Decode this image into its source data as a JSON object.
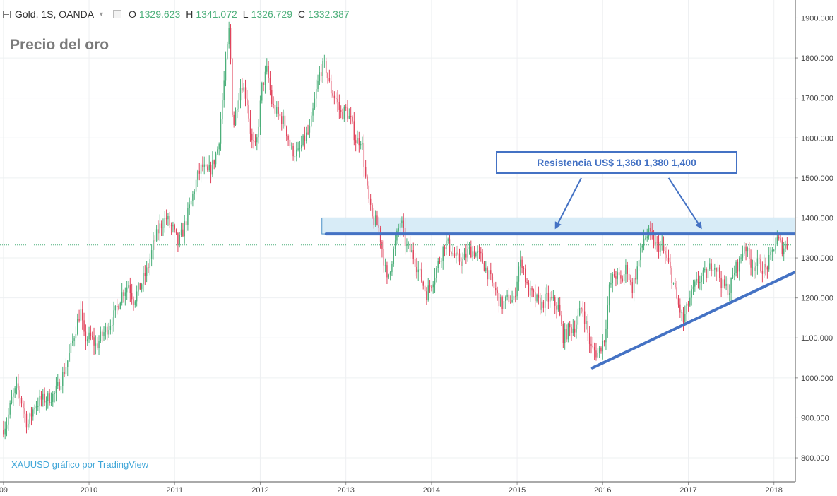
{
  "header": {
    "symbol": "Gold, 1S, OANDA",
    "ohlc": [
      {
        "key": "O",
        "value": "1329.623"
      },
      {
        "key": "H",
        "value": "1341.072"
      },
      {
        "key": "L",
        "value": "1326.729"
      },
      {
        "key": "C",
        "value": "1332.387"
      }
    ]
  },
  "watermark": "XAUUSD gráfico por TradingView",
  "callout": "Resistencia US$ 1,360  1,380 1,400",
  "colors": {
    "up": "#4caf7a",
    "down": "#e0445c",
    "annotation": "#4472c4",
    "zone_fill": "#d8ecf7",
    "zone_border": "#4a90c8",
    "watermark": "#3fa6d8",
    "title": "#7a7a7a"
  },
  "chart_data": {
    "type": "candlestick",
    "title": "Precio del oro",
    "xlabel": "",
    "ylabel": "",
    "x_tick_labels": [
      "2010",
      "2011",
      "2012",
      "2013",
      "2014",
      "2015",
      "2016",
      "2017",
      "2018"
    ],
    "x_first_partial_label": "09",
    "y_tick_labels": [
      "800.000",
      "900.000",
      "1000.000",
      "1100.000",
      "1200.000",
      "1300.000",
      "1400.000",
      "1500.000",
      "1600.000",
      "1700.000",
      "1800.000",
      "1900.000"
    ],
    "ylim": [
      740,
      1945
    ],
    "xlim": [
      2008.96,
      2018.25
    ],
    "grid": true,
    "current_price": 1332.387,
    "price_path": [
      [
        2009.0,
        870
      ],
      [
        2009.06,
        890
      ],
      [
        2009.12,
        950
      ],
      [
        2009.18,
        975
      ],
      [
        2009.24,
        935
      ],
      [
        2009.3,
        880
      ],
      [
        2009.38,
        930
      ],
      [
        2009.46,
        945
      ],
      [
        2009.55,
        950
      ],
      [
        2009.62,
        960
      ],
      [
        2009.7,
        1000
      ],
      [
        2009.78,
        1050
      ],
      [
        2009.86,
        1120
      ],
      [
        2009.92,
        1170
      ],
      [
        2009.96,
        1100
      ],
      [
        2010.04,
        1100
      ],
      [
        2010.1,
        1080
      ],
      [
        2010.18,
        1110
      ],
      [
        2010.25,
        1130
      ],
      [
        2010.32,
        1160
      ],
      [
        2010.4,
        1210
      ],
      [
        2010.48,
        1235
      ],
      [
        2010.54,
        1195
      ],
      [
        2010.62,
        1230
      ],
      [
        2010.7,
        1270
      ],
      [
        2010.78,
        1340
      ],
      [
        2010.85,
        1380
      ],
      [
        2010.92,
        1400
      ],
      [
        2011.0,
        1370
      ],
      [
        2011.06,
        1335
      ],
      [
        2011.12,
        1370
      ],
      [
        2011.2,
        1430
      ],
      [
        2011.28,
        1500
      ],
      [
        2011.34,
        1530
      ],
      [
        2011.4,
        1510
      ],
      [
        2011.46,
        1530
      ],
      [
        2011.53,
        1580
      ],
      [
        2011.6,
        1750
      ],
      [
        2011.66,
        1880
      ],
      [
        2011.7,
        1620
      ],
      [
        2011.74,
        1680
      ],
      [
        2011.8,
        1740
      ],
      [
        2011.86,
        1700
      ],
      [
        2011.92,
        1590
      ],
      [
        2011.97,
        1570
      ],
      [
        2012.04,
        1730
      ],
      [
        2012.1,
        1770
      ],
      [
        2012.16,
        1680
      ],
      [
        2012.22,
        1660
      ],
      [
        2012.3,
        1640
      ],
      [
        2012.38,
        1570
      ],
      [
        2012.46,
        1560
      ],
      [
        2012.54,
        1600
      ],
      [
        2012.6,
        1620
      ],
      [
        2012.66,
        1700
      ],
      [
        2012.72,
        1770
      ],
      [
        2012.78,
        1780
      ],
      [
        2012.84,
        1720
      ],
      [
        2012.9,
        1700
      ],
      [
        2012.96,
        1660
      ],
      [
        2013.02,
        1670
      ],
      [
        2013.08,
        1640
      ],
      [
        2013.14,
        1590
      ],
      [
        2013.2,
        1600
      ],
      [
        2013.26,
        1480
      ],
      [
        2013.32,
        1400
      ],
      [
        2013.4,
        1380
      ],
      [
        2013.46,
        1300
      ],
      [
        2013.5,
        1240
      ],
      [
        2013.56,
        1300
      ],
      [
        2013.62,
        1360
      ],
      [
        2013.66,
        1395
      ],
      [
        2013.72,
        1330
      ],
      [
        2013.8,
        1310
      ],
      [
        2013.88,
        1260
      ],
      [
        2013.96,
        1210
      ],
      [
        2014.04,
        1250
      ],
      [
        2014.12,
        1300
      ],
      [
        2014.18,
        1340
      ],
      [
        2014.22,
        1330
      ],
      [
        2014.3,
        1300
      ],
      [
        2014.38,
        1290
      ],
      [
        2014.46,
        1320
      ],
      [
        2014.52,
        1315
      ],
      [
        2014.6,
        1300
      ],
      [
        2014.68,
        1260
      ],
      [
        2014.76,
        1220
      ],
      [
        2014.84,
        1180
      ],
      [
        2014.92,
        1200
      ],
      [
        2014.98,
        1190
      ],
      [
        2015.04,
        1280
      ],
      [
        2015.08,
        1290
      ],
      [
        2015.14,
        1220
      ],
      [
        2015.22,
        1200
      ],
      [
        2015.3,
        1180
      ],
      [
        2015.36,
        1200
      ],
      [
        2015.44,
        1190
      ],
      [
        2015.5,
        1175
      ],
      [
        2015.56,
        1100
      ],
      [
        2015.62,
        1120
      ],
      [
        2015.7,
        1130
      ],
      [
        2015.78,
        1180
      ],
      [
        2015.82,
        1140
      ],
      [
        2015.88,
        1075
      ],
      [
        2015.96,
        1060
      ],
      [
        2016.04,
        1100
      ],
      [
        2016.1,
        1230
      ],
      [
        2016.16,
        1260
      ],
      [
        2016.24,
        1240
      ],
      [
        2016.3,
        1280
      ],
      [
        2016.36,
        1220
      ],
      [
        2016.44,
        1290
      ],
      [
        2016.5,
        1350
      ],
      [
        2016.56,
        1360
      ],
      [
        2016.64,
        1330
      ],
      [
        2016.7,
        1330
      ],
      [
        2016.76,
        1300
      ],
      [
        2016.82,
        1260
      ],
      [
        2016.88,
        1200
      ],
      [
        2016.96,
        1140
      ],
      [
        2017.04,
        1200
      ],
      [
        2017.1,
        1230
      ],
      [
        2017.16,
        1250
      ],
      [
        2017.24,
        1260
      ],
      [
        2017.3,
        1290
      ],
      [
        2017.36,
        1270
      ],
      [
        2017.42,
        1230
      ],
      [
        2017.5,
        1220
      ],
      [
        2017.56,
        1270
      ],
      [
        2017.62,
        1290
      ],
      [
        2017.68,
        1340
      ],
      [
        2017.72,
        1300
      ],
      [
        2017.78,
        1280
      ],
      [
        2017.84,
        1285
      ],
      [
        2017.92,
        1270
      ],
      [
        2017.98,
        1300
      ],
      [
        2018.02,
        1330
      ],
      [
        2018.06,
        1345
      ],
      [
        2018.12,
        1325
      ],
      [
        2018.16,
        1332
      ]
    ],
    "annotations": [
      {
        "type": "zone",
        "y": [
          1360,
          1400
        ]
      },
      {
        "type": "line",
        "points": [
          [
            2012.77,
            1360
          ],
          [
            2018.25,
            1360
          ]
        ]
      },
      {
        "type": "line",
        "points": [
          [
            2015.88,
            1025
          ],
          [
            2018.25,
            1265
          ]
        ]
      },
      {
        "type": "arrow",
        "from": [
          2015.75,
          1500
        ],
        "to": [
          2015.45,
          1375
        ]
      },
      {
        "type": "arrow",
        "from": [
          2016.77,
          1500
        ],
        "to": [
          2017.15,
          1375
        ]
      }
    ]
  }
}
